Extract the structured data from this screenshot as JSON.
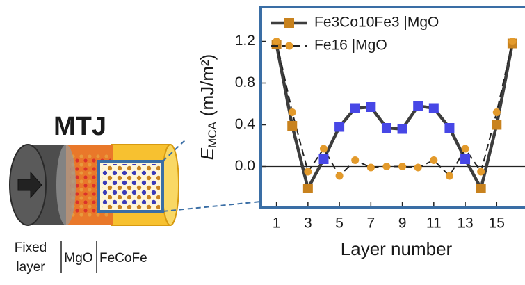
{
  "chart_data": {
    "type": "line",
    "xlabel": "Layer number",
    "ylabel": {
      "symbol": "E",
      "subscript": "MCA",
      "unit": "(mJ/m²)"
    },
    "x": [
      1,
      2,
      3,
      4,
      5,
      6,
      7,
      8,
      9,
      10,
      11,
      12,
      13,
      14,
      15,
      16
    ],
    "xlim": [
      0,
      16.8
    ],
    "xticks": [
      1,
      3,
      5,
      7,
      9,
      11,
      13,
      15
    ],
    "ylim": [
      -0.39,
      1.53
    ],
    "yticks": [
      {
        "value": 0,
        "label": "0.0"
      },
      {
        "value": 0.4,
        "label": "0.4"
      },
      {
        "value": 0.8,
        "label": "0.8"
      },
      {
        "value": 1.2,
        "label": "1.2"
      }
    ],
    "reference_line": 0,
    "legend": "upper left",
    "series": [
      {
        "name": "Fe3Co10Fe3 |MgO",
        "color": "#3d3d3d",
        "marker": "square",
        "dashed": false,
        "point_colors": [
          "#c8821e",
          "#c8821e",
          "#c8821e",
          "#4747e6",
          "#4747e6",
          "#4747e6",
          "#4747e6",
          "#4747e6",
          "#4747e6",
          "#4747e6",
          "#4747e6",
          "#4747e6",
          "#4747e6",
          "#c8821e",
          "#c8821e",
          "#c8821e"
        ],
        "values": [
          1.17,
          0.39,
          -0.21,
          0.07,
          0.38,
          0.56,
          0.57,
          0.37,
          0.36,
          0.58,
          0.56,
          0.37,
          0.07,
          -0.21,
          0.4,
          1.18
        ]
      },
      {
        "name": "Fe16 |MgO",
        "color": "#222222",
        "marker": "circle",
        "dashed": true,
        "point_colors": [
          "#e39a2b",
          "#e39a2b",
          "#e39a2b",
          "#e39a2b",
          "#e39a2b",
          "#e39a2b",
          "#e39a2b",
          "#e39a2b",
          "#e39a2b",
          "#e39a2b",
          "#e39a2b",
          "#e39a2b",
          "#e39a2b",
          "#e39a2b",
          "#e39a2b",
          "#e39a2b"
        ],
        "values": [
          1.2,
          0.52,
          -0.05,
          0.17,
          -0.09,
          0.06,
          -0.01,
          0.0,
          0.0,
          -0.01,
          0.06,
          -0.09,
          0.17,
          -0.05,
          0.52,
          1.2
        ]
      }
    ]
  },
  "illustration": {
    "title": "MTJ",
    "fixed_line1": "Fixed",
    "fixed_line2": "layer",
    "barrier": "MgO",
    "free": "FeCoFe"
  }
}
